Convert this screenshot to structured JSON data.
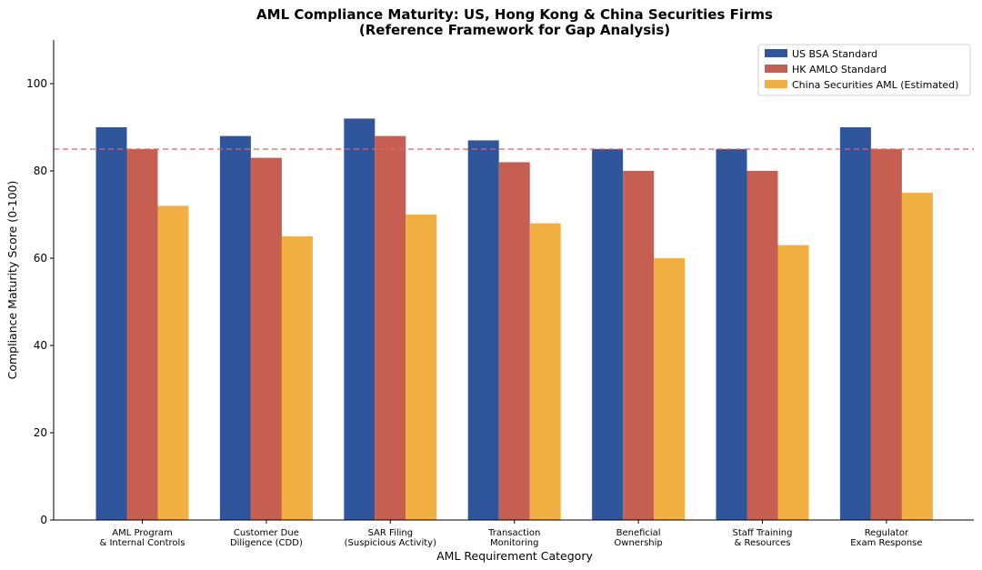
{
  "chart_data": {
    "type": "bar",
    "title_line1": "AML Compliance Maturity: US, Hong Kong & China Securities Firms",
    "title_line2": "(Reference Framework for Gap Analysis)",
    "xlabel": "AML Requirement Category",
    "ylabel": "Compliance Maturity Score (0-100)",
    "ylim": [
      0,
      110
    ],
    "yticks": [
      0,
      20,
      40,
      60,
      80,
      100
    ],
    "categories": [
      {
        "line1": "AML Program",
        "line2": "& Internal Controls"
      },
      {
        "line1": "Customer Due",
        "line2": "Diligence (CDD)"
      },
      {
        "line1": "SAR Filing",
        "line2": "(Suspicious Activity)"
      },
      {
        "line1": "Transaction",
        "line2": "Monitoring"
      },
      {
        "line1": "Beneficial",
        "line2": "Ownership"
      },
      {
        "line1": "Staff Training",
        "line2": "& Resources"
      },
      {
        "line1": "Regulator",
        "line2": "Exam Response"
      }
    ],
    "series": [
      {
        "name": "US BSA Standard",
        "color": "#2f569d",
        "values": [
          90,
          88,
          92,
          87,
          85,
          85,
          90
        ]
      },
      {
        "name": "HK AMLO Standard",
        "color": "#c65f51",
        "values": [
          85,
          83,
          88,
          82,
          80,
          80,
          85
        ]
      },
      {
        "name": "China Securities AML (Estimated)",
        "color": "#f2b042",
        "values": [
          72,
          65,
          70,
          68,
          60,
          63,
          75
        ]
      }
    ],
    "reference_line": {
      "value": 85,
      "color": "#e26565",
      "style": "dashed"
    },
    "legend_position": "top-right",
    "grid": false
  }
}
